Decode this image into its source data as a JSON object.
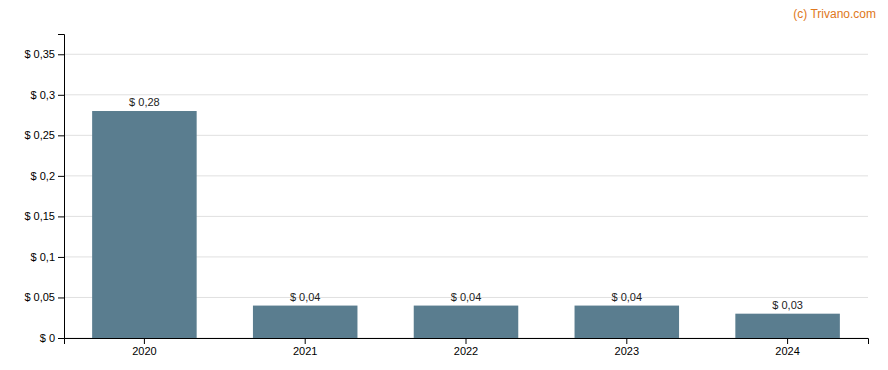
{
  "chart_data": {
    "type": "bar",
    "categories": [
      "2020",
      "2021",
      "2022",
      "2023",
      "2024"
    ],
    "values": [
      0.28,
      0.04,
      0.04,
      0.04,
      0.03
    ],
    "value_labels": [
      "$ 0,28",
      "$ 0,04",
      "$ 0,04",
      "$ 0,04",
      "$ 0,03"
    ],
    "color": "#5a7d8f",
    "ylim": [
      0,
      0.375
    ],
    "yticks": [
      {
        "value": 0,
        "label": "$ 0"
      },
      {
        "value": 0.05,
        "label": "$ 0,05"
      },
      {
        "value": 0.1,
        "label": "$ 0,1"
      },
      {
        "value": 0.15,
        "label": "$ 0,15"
      },
      {
        "value": 0.2,
        "label": "$ 0,2"
      },
      {
        "value": 0.25,
        "label": "$ 0,25"
      },
      {
        "value": 0.3,
        "label": "$ 0,3"
      },
      {
        "value": 0.35,
        "label": "$ 0,35"
      }
    ],
    "grid": true,
    "data_labels": true,
    "annotations": [
      "(c) Trivano.com"
    ]
  }
}
